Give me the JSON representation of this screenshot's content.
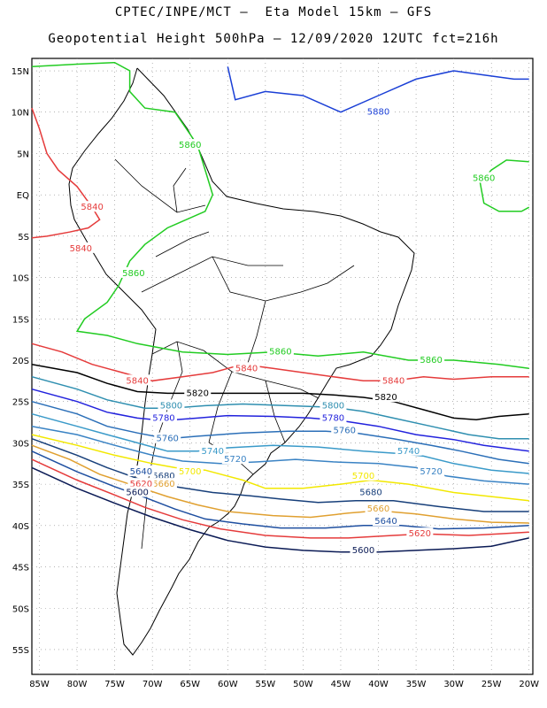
{
  "title_line1": "CPTEC/INPE/MCT –  Eta Model 15km – GFS",
  "title_line2": "Geopotential Height 500hPa – 12/09/2020 12UTC fct=216h",
  "axes": {
    "lon_ticks": [
      "85W",
      "80W",
      "75W",
      "70W",
      "65W",
      "60W",
      "55W",
      "50W",
      "45W",
      "40W",
      "35W",
      "30W",
      "25W",
      "20W"
    ],
    "lat_ticks": [
      "15N",
      "10N",
      "5N",
      "EQ",
      "5S",
      "10S",
      "15S",
      "20S",
      "25S",
      "30S",
      "35S",
      "40S",
      "45S",
      "50S",
      "55S"
    ]
  },
  "contour_colors": {
    "5880": "#1a3fd6",
    "5860": "#22cc22",
    "5840": "#e53b3b",
    "5820": "#000000",
    "5800": "#2f8fb0",
    "5780": "#2222dd",
    "5760": "#2b6fb8",
    "5740": "#3a9ac9",
    "5720": "#3a83c4",
    "5700": "#f2e800",
    "5680": "#173f7a",
    "5660": "#e0a030",
    "5640": "#1e4fa0",
    "5620": "#e53b3b",
    "5600": "#0a1a55"
  },
  "contour_labels": [
    {
      "text": "5880",
      "level": "5880",
      "lon": -40,
      "lat": 10
    },
    {
      "text": "5860",
      "level": "5860",
      "lon": -65,
      "lat": 6
    },
    {
      "text": "5860",
      "level": "5860",
      "lon": -26,
      "lat": 2
    },
    {
      "text": "5860",
      "level": "5860",
      "lon": -72.5,
      "lat": -9.5
    },
    {
      "text": "5860",
      "level": "5860",
      "lon": -53,
      "lat": -19
    },
    {
      "text": "5860",
      "level": "5860",
      "lon": -33,
      "lat": -20
    },
    {
      "text": "5840",
      "level": "5840",
      "lon": -78,
      "lat": -1.5
    },
    {
      "text": "5840",
      "level": "5840",
      "lon": -79.5,
      "lat": -6.5
    },
    {
      "text": "5840",
      "level": "5840",
      "lon": -72,
      "lat": -22.5
    },
    {
      "text": "5840",
      "level": "5840",
      "lon": -57.5,
      "lat": -21
    },
    {
      "text": "5840",
      "level": "5840",
      "lon": -38,
      "lat": -22.5
    },
    {
      "text": "5820",
      "level": "5820",
      "lon": -64,
      "lat": -24
    },
    {
      "text": "5820",
      "level": "5820",
      "lon": -39,
      "lat": -24.5
    },
    {
      "text": "5800",
      "level": "5800",
      "lon": -67.5,
      "lat": -25.5
    },
    {
      "text": "5800",
      "level": "5800",
      "lon": -46,
      "lat": -25.5
    },
    {
      "text": "5780",
      "level": "5780",
      "lon": -68.5,
      "lat": -27
    },
    {
      "text": "5780",
      "level": "5780",
      "lon": -46,
      "lat": -27
    },
    {
      "text": "5760",
      "level": "5760",
      "lon": -68,
      "lat": -29.5
    },
    {
      "text": "5760",
      "level": "5760",
      "lon": -44.5,
      "lat": -28.5
    },
    {
      "text": "5740",
      "level": "5740",
      "lon": -62,
      "lat": -31
    },
    {
      "text": "5740",
      "level": "5740",
      "lon": -36,
      "lat": -31
    },
    {
      "text": "5720",
      "level": "5720",
      "lon": -59,
      "lat": -32
    },
    {
      "text": "5720",
      "level": "5720",
      "lon": -33,
      "lat": -33.5
    },
    {
      "text": "5700",
      "level": "5700",
      "lon": -65,
      "lat": -33.5
    },
    {
      "text": "5700",
      "level": "5700",
      "lon": -42,
      "lat": -34
    },
    {
      "text": "5680",
      "level": "5680",
      "lon": -68.5,
      "lat": -34
    },
    {
      "text": "5680",
      "level": "5680",
      "lon": -41,
      "lat": -36
    },
    {
      "text": "5660",
      "level": "5660",
      "lon": -68.5,
      "lat": -35
    },
    {
      "text": "5660",
      "level": "5660",
      "lon": -40,
      "lat": -38
    },
    {
      "text": "5640",
      "level": "5640",
      "lon": -71.5,
      "lat": -33.5
    },
    {
      "text": "5640",
      "level": "5640",
      "lon": -39,
      "lat": -39.5
    },
    {
      "text": "5620",
      "level": "5620",
      "lon": -71.5,
      "lat": -35
    },
    {
      "text": "5620",
      "level": "5620",
      "lon": -34.5,
      "lat": -41
    },
    {
      "text": "5600",
      "level": "5600",
      "lon": -72,
      "lat": -36
    },
    {
      "text": "5600",
      "level": "5600",
      "lon": -42,
      "lat": -43
    }
  ]
}
